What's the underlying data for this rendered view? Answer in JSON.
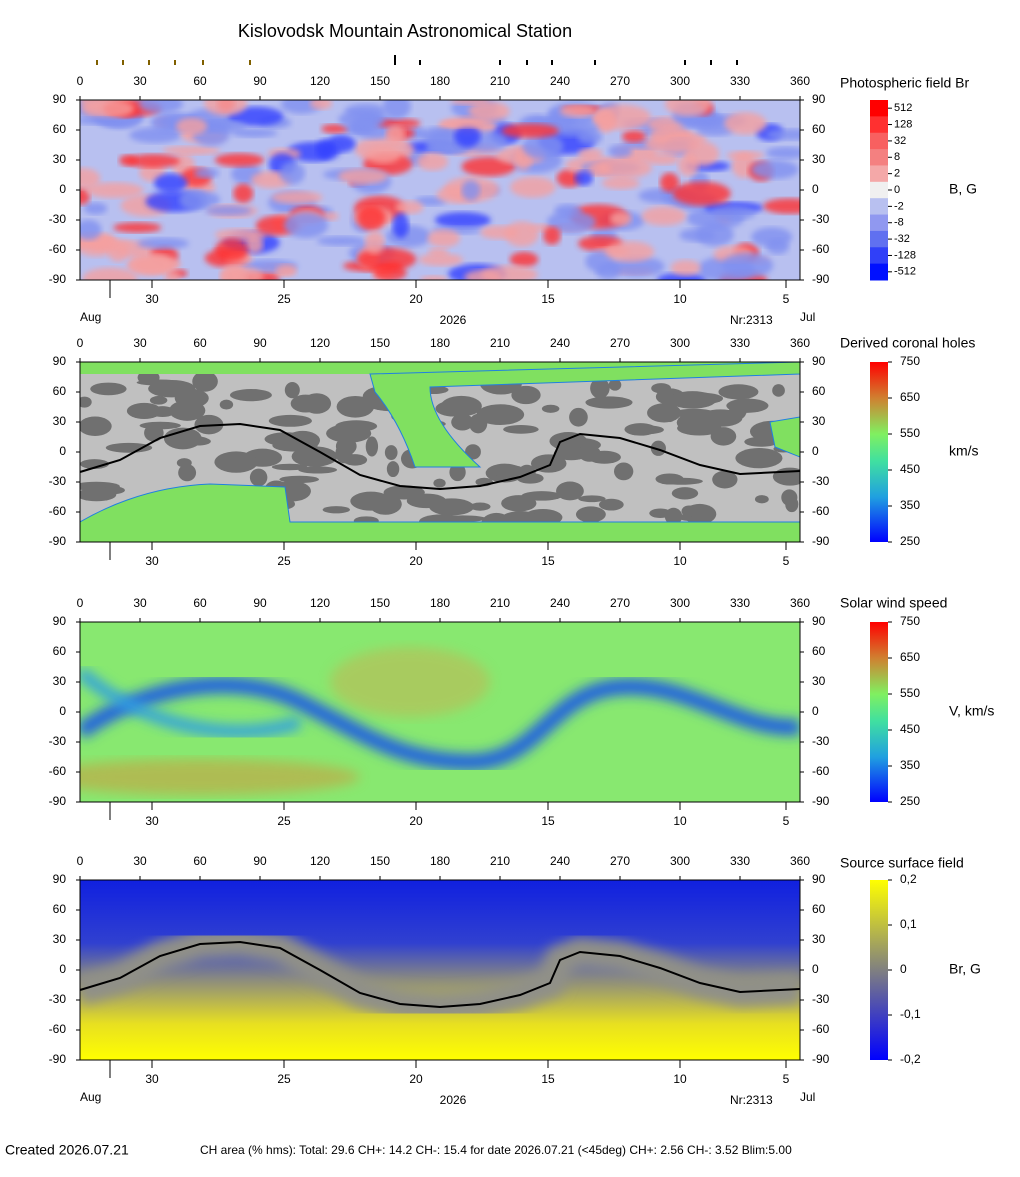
{
  "header": {
    "title": "Kislovodsk Mountain Astronomical Station"
  },
  "chart_data": [
    {
      "type": "map",
      "colorbar_title": "Photospheric field Br",
      "colorbar_unit": "B, G",
      "xlim": [
        0,
        360
      ],
      "ylim": [
        -90,
        90
      ],
      "xticks": [
        0,
        30,
        60,
        90,
        120,
        150,
        180,
        210,
        240,
        270,
        300,
        330,
        360
      ],
      "yticks": [
        -90,
        -60,
        -30,
        0,
        30,
        60,
        90
      ],
      "date_ticks": [
        {
          "value": 36,
          "label": "30"
        },
        {
          "value": 102,
          "label": "25"
        },
        {
          "value": 168,
          "label": "20"
        },
        {
          "value": 234,
          "label": "15"
        },
        {
          "value": 300,
          "label": "10"
        },
        {
          "value": 353,
          "label": "5"
        }
      ],
      "month_left": "Aug",
      "year": "2026",
      "rotation": "Nr:2313",
      "month_right": "Jul",
      "colorbar_levels": [
        512,
        128,
        32,
        8,
        2,
        0,
        -2,
        -8,
        -32,
        -128,
        -512
      ]
    },
    {
      "type": "map",
      "colorbar_title": "Derived coronal holes",
      "colorbar_unit": "km/s",
      "xlim": [
        0,
        360
      ],
      "ylim": [
        -90,
        90
      ],
      "xticks": [
        0,
        30,
        60,
        90,
        120,
        150,
        180,
        210,
        240,
        270,
        300,
        330,
        360
      ],
      "yticks": [
        -90,
        -60,
        -30,
        0,
        30,
        60,
        90
      ],
      "date_ticks": [
        {
          "value": 36,
          "label": "30"
        },
        {
          "value": 102,
          "label": "25"
        },
        {
          "value": 168,
          "label": "20"
        },
        {
          "value": 234,
          "label": "15"
        },
        {
          "value": 300,
          "label": "10"
        },
        {
          "value": 353,
          "label": "5"
        }
      ],
      "clim": [
        250,
        750
      ],
      "colorbar_ticks": [
        250,
        350,
        450,
        550,
        650,
        750
      ],
      "neutral_line": {
        "color": "#000000",
        "x": [
          0,
          20,
          40,
          60,
          80,
          100,
          120,
          140,
          160,
          180,
          200,
          220,
          235,
          240,
          250,
          270,
          290,
          310,
          330,
          360
        ],
        "y": [
          -20,
          -8,
          14,
          26,
          28,
          22,
          0,
          -23,
          -34,
          -37,
          -34,
          -25,
          -13,
          10,
          18,
          14,
          2,
          -13,
          -22,
          -19
        ]
      }
    },
    {
      "type": "map",
      "colorbar_title": "Solar wind speed",
      "colorbar_unit": "V, km/s",
      "xlim": [
        0,
        360
      ],
      "ylim": [
        -90,
        90
      ],
      "xticks": [
        0,
        30,
        60,
        90,
        120,
        150,
        180,
        210,
        240,
        270,
        300,
        330,
        360
      ],
      "yticks": [
        -90,
        -60,
        -30,
        0,
        30,
        60,
        90
      ],
      "date_ticks": [
        {
          "value": 36,
          "label": "30"
        },
        {
          "value": 102,
          "label": "25"
        },
        {
          "value": 168,
          "label": "20"
        },
        {
          "value": 234,
          "label": "15"
        },
        {
          "value": 300,
          "label": "10"
        },
        {
          "value": 353,
          "label": "5"
        }
      ],
      "clim": [
        250,
        750
      ],
      "colorbar_ticks": [
        250,
        350,
        450,
        550,
        650,
        750
      ]
    },
    {
      "type": "map",
      "colorbar_title": "Source surface field",
      "colorbar_unit": "Br, G",
      "xlim": [
        0,
        360
      ],
      "ylim": [
        -90,
        90
      ],
      "xticks": [
        0,
        30,
        60,
        90,
        120,
        150,
        180,
        210,
        240,
        270,
        300,
        330,
        360
      ],
      "yticks": [
        -90,
        -60,
        -30,
        0,
        30,
        60,
        90
      ],
      "date_ticks": [
        {
          "value": 36,
          "label": "30"
        },
        {
          "value": 102,
          "label": "25"
        },
        {
          "value": 168,
          "label": "20"
        },
        {
          "value": 234,
          "label": "15"
        },
        {
          "value": 300,
          "label": "10"
        },
        {
          "value": 353,
          "label": "5"
        }
      ],
      "month_left": "Aug",
      "year": "2026",
      "rotation": "Nr:2313",
      "month_right": "Jul",
      "clim": [
        -0.2,
        0.2
      ],
      "colorbar_ticks": [
        {
          "value": -0.2,
          "label": "-0,2"
        },
        {
          "value": -0.1,
          "label": "-0,1"
        },
        0,
        {
          "value": 0.1,
          "label": "0,1"
        },
        {
          "value": 0.2,
          "label": "0,2"
        }
      ],
      "neutral_line": {
        "color": "#000000",
        "x": [
          0,
          20,
          40,
          60,
          80,
          100,
          120,
          140,
          160,
          180,
          200,
          220,
          235,
          240,
          250,
          270,
          290,
          310,
          330,
          360
        ],
        "y": [
          -20,
          -8,
          14,
          26,
          28,
          22,
          0,
          -23,
          -34,
          -37,
          -34,
          -25,
          -13,
          10,
          18,
          14,
          2,
          -13,
          -22,
          -19
        ]
      }
    }
  ],
  "footer": {
    "created": "Created  2026.07.21",
    "stats": "CH area (% hms): Total: 29.6 CH+: 14.2   CH-: 15.4 for date 2026.07.21 (<45deg) CH+: 2.56    CH-: 3.52 Blim:5.00"
  }
}
